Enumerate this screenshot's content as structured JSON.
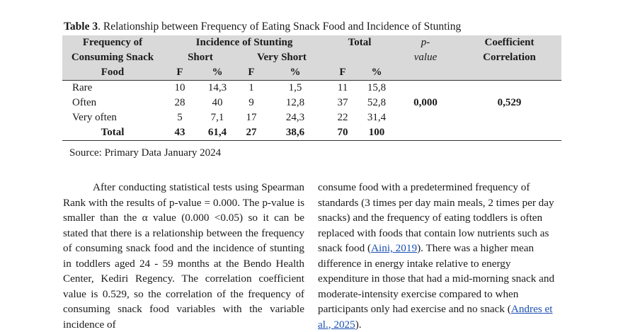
{
  "caption": {
    "label": "Table 3",
    "text": ". Relationship between Frequency of Eating Snack Food and Incidence of Stunting"
  },
  "table": {
    "header": {
      "freq_line1": "Frequency of",
      "freq_line2": "Consuming Snack",
      "freq_line3": "Food",
      "incidence": "Incidence of Stunting",
      "short": "Short",
      "very_short": "Very Short",
      "total": "Total",
      "pvalue_line1": "p-",
      "pvalue_line2": "value",
      "coef_line1": "Coefficient",
      "coef_line2": "Correlation",
      "f": "F",
      "pct": "%"
    },
    "rows": [
      {
        "label": "Rare",
        "short_f": "10",
        "short_pct": "14,3",
        "vs_f": "1",
        "vs_pct": "1,5",
        "tot_f": "11",
        "tot_pct": "15,8"
      },
      {
        "label": "Often",
        "short_f": "28",
        "short_pct": "40",
        "vs_f": "9",
        "vs_pct": "12,8",
        "tot_f": "37",
        "tot_pct": "52,8"
      },
      {
        "label": "Very often",
        "short_f": "5",
        "short_pct": "7,1",
        "vs_f": "17",
        "vs_pct": "24,3",
        "tot_f": "22",
        "tot_pct": "31,4"
      }
    ],
    "total_row": {
      "label": "Total",
      "short_f": "43",
      "short_pct": "61,4",
      "vs_f": "27",
      "vs_pct": "38,6",
      "tot_f": "70",
      "tot_pct": "100"
    },
    "p_value": "0,000",
    "coefficient": "0,529"
  },
  "source": "Source: Primary Data January 2024",
  "body": {
    "col1": "After conducting statistical tests using Spearman Rank with the results of p-value = 0.000. The p-value is smaller than the α value (0.000 <0.05) so it can be stated that there is a relationship between the frequency of consuming snack food and the incidence of stunting in toddlers aged 24 - 59 months at the Bendo Health Center, Kediri Regency. The correlation coefficient value is 0.529, so the correlation of the frequency of consuming snack food variables with the variable incidence of",
    "col2_part1": "consume food with a predetermined frequency of standards (3 times per day main meals, 2 times per day snacks) and the frequency of eating toddlers is often replaced with foods that contain low nutrients such as snack food (",
    "col2_link1": "Aini, 2019",
    "col2_part2": "). There was a higher mean difference in energy intake relative to energy expenditure in those that had a mid-morning snack and moderate-intensity exercise compared to when participants only had exercise and no snack (",
    "col2_link2": "Andres et al., 2025",
    "col2_part3": ")."
  }
}
